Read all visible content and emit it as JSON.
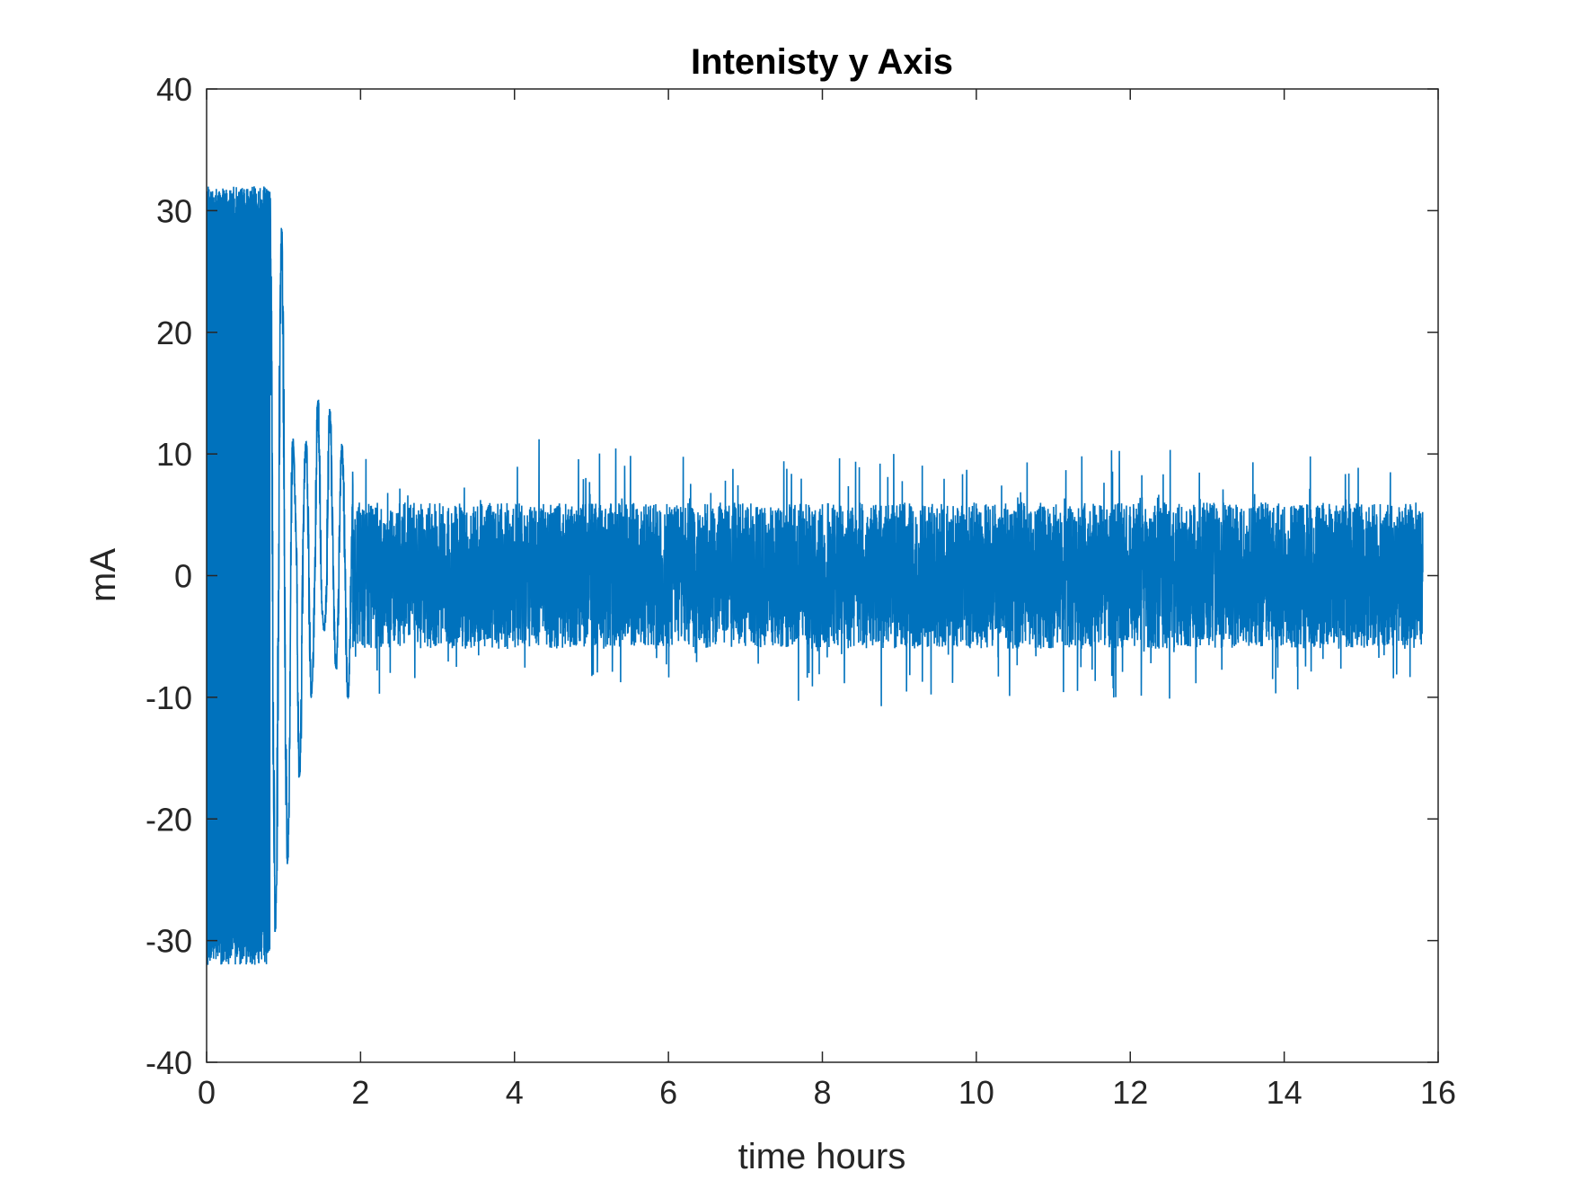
{
  "chart_data": {
    "type": "line",
    "title": "Intenisty y Axis",
    "xlabel": "time hours",
    "ylabel": "mA",
    "xlim": [
      0,
      16
    ],
    "ylim": [
      -40,
      40
    ],
    "xticks": [
      "0",
      "2",
      "4",
      "6",
      "8",
      "10",
      "12",
      "14",
      "16"
    ],
    "yticks": [
      "40",
      "30",
      "20",
      "10",
      "0",
      "-10",
      "-20",
      "-30",
      "-40"
    ],
    "grid": false,
    "line_color": "#0072BD",
    "series": [
      {
        "x_end": 15.8,
        "envelope": [
          {
            "x": 0.0,
            "max": 32,
            "min": -32
          },
          {
            "x": 0.4,
            "max": 32,
            "min": -32
          },
          {
            "x": 0.8,
            "max": 32,
            "min": -32
          },
          {
            "x": 1.0,
            "max": 28,
            "min": -26
          },
          {
            "x": 1.15,
            "max": 8,
            "min": -19
          },
          {
            "x": 1.5,
            "max": 15.5,
            "min": -4
          },
          {
            "x": 1.8,
            "max": 10,
            "min": -10
          },
          {
            "x": 2.5,
            "max": 10,
            "min": -10
          },
          {
            "x": 3.2,
            "max": 7,
            "min": -9
          },
          {
            "x": 3.5,
            "max": 9,
            "min": -7
          },
          {
            "x": 4.0,
            "max": 11.5,
            "min": -8
          },
          {
            "x": 6.0,
            "max": 10,
            "min": -10
          },
          {
            "x": 10.2,
            "max": 10.5,
            "min": -11.5
          },
          {
            "x": 14.0,
            "max": 10.5,
            "min": -10
          },
          {
            "x": 15.8,
            "max": 8.5,
            "min": -8.5
          }
        ],
        "typical_band": [
          -6,
          6
        ]
      }
    ]
  }
}
